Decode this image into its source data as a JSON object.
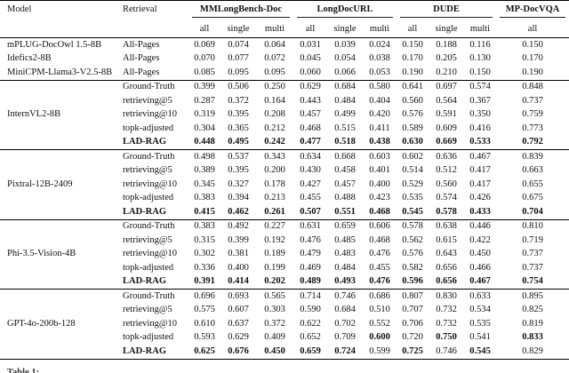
{
  "table": {
    "headers": {
      "model": "Model",
      "retrieval": "Retrieval"
    },
    "groups": [
      {
        "label": "MMLongBench-Doc",
        "subs": [
          "all",
          "single",
          "multi"
        ]
      },
      {
        "label": "LongDocURL",
        "subs": [
          "all",
          "single",
          "multi"
        ]
      },
      {
        "label": "DUDE",
        "subs": [
          "all",
          "single",
          "multi"
        ]
      },
      {
        "label": "MP-DocVQA",
        "subs": [
          "all"
        ]
      }
    ],
    "blocks": [
      {
        "model": null,
        "rows": [
          {
            "model": "mPLUG-DocOwl 1.5-8B",
            "retrieval": "All-Pages",
            "values": [
              "0.069",
              "0.074",
              "0.064",
              "0.031",
              "0.039",
              "0.024",
              "0.150",
              "0.188",
              "0.116",
              "0.150"
            ]
          },
          {
            "model": "Idefics2-8B",
            "retrieval": "All-Pages",
            "values": [
              "0.070",
              "0.077",
              "0.072",
              "0.045",
              "0.054",
              "0.038",
              "0.170",
              "0.205",
              "0.130",
              "0.170"
            ]
          },
          {
            "model": "MiniCPM-Llama3-V2.5-8B",
            "retrieval": "All-Pages",
            "values": [
              "0.085",
              "0.095",
              "0.095",
              "0.060",
              "0.066",
              "0.053",
              "0.190",
              "0.210",
              "0.150",
              "0.190"
            ]
          }
        ]
      },
      {
        "model": "InternVL2-8B",
        "rows": [
          {
            "retrieval": "Ground-Truth",
            "values": [
              "0.399",
              "0.506",
              "0.250",
              "0.629",
              "0.684",
              "0.580",
              "0.641",
              "0.697",
              "0.574",
              "0.848"
            ]
          },
          {
            "retrieval": "retrieving@5",
            "values": [
              "0.287",
              "0.372",
              "0.164",
              "0.443",
              "0.484",
              "0.404",
              "0.560",
              "0.564",
              "0.367",
              "0.737"
            ]
          },
          {
            "retrieval": "retrieving@10",
            "values": [
              "0.319",
              "0.395",
              "0.208",
              "0.457",
              "0.499",
              "0.420",
              "0.576",
              "0.591",
              "0.350",
              "0.759"
            ]
          },
          {
            "retrieval": "topk-adjusted",
            "values": [
              "0.304",
              "0.365",
              "0.212",
              "0.468",
              "0.515",
              "0.411",
              "0.589",
              "0.609",
              "0.416",
              "0.773"
            ]
          },
          {
            "retrieval": "LAD-RAG",
            "label_bold": true,
            "values": [
              "0.448",
              "0.495",
              "0.242",
              "0.477",
              "0.518",
              "0.438",
              "0.630",
              "0.669",
              "0.533",
              "0.792"
            ],
            "bold": [
              1,
              1,
              1,
              1,
              1,
              1,
              1,
              1,
              1,
              1
            ]
          }
        ]
      },
      {
        "model": "Pixtral-12B-2409",
        "rows": [
          {
            "retrieval": "Ground-Truth",
            "values": [
              "0.498",
              "0.537",
              "0.343",
              "0.634",
              "0.668",
              "0.603",
              "0.602",
              "0.636",
              "0.467",
              "0.839"
            ]
          },
          {
            "retrieval": "retrieving@5",
            "values": [
              "0.389",
              "0.395",
              "0.200",
              "0.430",
              "0.458",
              "0.401",
              "0.514",
              "0.512",
              "0.417",
              "0.663"
            ]
          },
          {
            "retrieval": "retrieving@10",
            "values": [
              "0.345",
              "0.327",
              "0.178",
              "0.427",
              "0.457",
              "0.400",
              "0.529",
              "0.560",
              "0.417",
              "0.655"
            ]
          },
          {
            "retrieval": "topk-adjusted",
            "values": [
              "0.383",
              "0.394",
              "0.213",
              "0.455",
              "0.488",
              "0.423",
              "0.535",
              "0.574",
              "0.426",
              "0.675"
            ]
          },
          {
            "retrieval": "LAD-RAG",
            "label_bold": true,
            "values": [
              "0.415",
              "0.462",
              "0.261",
              "0.507",
              "0.551",
              "0.468",
              "0.545",
              "0.578",
              "0.433",
              "0.704"
            ],
            "bold": [
              1,
              1,
              1,
              1,
              1,
              1,
              1,
              1,
              1,
              1
            ]
          }
        ]
      },
      {
        "model": "Phi-3.5-Vision-4B",
        "rows": [
          {
            "retrieval": "Ground-Truth",
            "values": [
              "0.383",
              "0.492",
              "0.227",
              "0.631",
              "0.659",
              "0.606",
              "0.578",
              "0.638",
              "0.446",
              "0.810"
            ]
          },
          {
            "retrieval": "retrieving@5",
            "values": [
              "0.315",
              "0.399",
              "0.192",
              "0.476",
              "0.485",
              "0.468",
              "0.562",
              "0.615",
              "0.422",
              "0.719"
            ]
          },
          {
            "retrieval": "retrieving@10",
            "values": [
              "0.302",
              "0.381",
              "0.189",
              "0.479",
              "0.483",
              "0.476",
              "0.576",
              "0.643",
              "0.450",
              "0.737"
            ]
          },
          {
            "retrieval": "topk-adjusted",
            "values": [
              "0.336",
              "0.400",
              "0.199",
              "0.469",
              "0.484",
              "0.455",
              "0.582",
              "0.656",
              "0.466",
              "0.737"
            ]
          },
          {
            "retrieval": "LAD-RAG",
            "label_bold": true,
            "values": [
              "0.391",
              "0.414",
              "0.202",
              "0.489",
              "0.493",
              "0.476",
              "0.596",
              "0.656",
              "0.467",
              "0.754"
            ],
            "bold": [
              1,
              1,
              1,
              1,
              1,
              1,
              1,
              1,
              1,
              1
            ]
          }
        ]
      },
      {
        "model": "GPT-4o-200b-128",
        "rows": [
          {
            "retrieval": "Ground-Truth",
            "values": [
              "0.696",
              "0.693",
              "0.565",
              "0.714",
              "0.746",
              "0.686",
              "0.807",
              "0.830",
              "0.633",
              "0.895"
            ]
          },
          {
            "retrieval": "retrieving@5",
            "values": [
              "0.575",
              "0.607",
              "0.303",
              "0.590",
              "0.684",
              "0.510",
              "0.707",
              "0.732",
              "0.534",
              "0.825"
            ]
          },
          {
            "retrieval": "retrieving@10",
            "values": [
              "0.610",
              "0.637",
              "0.372",
              "0.622",
              "0.702",
              "0.552",
              "0.706",
              "0.732",
              "0.535",
              "0.819"
            ]
          },
          {
            "retrieval": "topk-adjusted",
            "values": [
              "0.593",
              "0.629",
              "0.409",
              "0.652",
              "0.709",
              "0.600",
              "0.720",
              "0.750",
              "0.541",
              "0.833"
            ],
            "bold": [
              0,
              0,
              0,
              0,
              0,
              1,
              0,
              1,
              0,
              1
            ]
          },
          {
            "retrieval": "LAD-RAG",
            "label_bold": true,
            "values": [
              "0.625",
              "0.676",
              "0.450",
              "0.659",
              "0.724",
              "0.599",
              "0.725",
              "0.746",
              "0.545",
              "0.829"
            ],
            "bold": [
              1,
              1,
              1,
              1,
              1,
              0,
              1,
              0,
              1,
              0
            ]
          }
        ]
      }
    ]
  },
  "caption_partial": "Table 1:"
}
